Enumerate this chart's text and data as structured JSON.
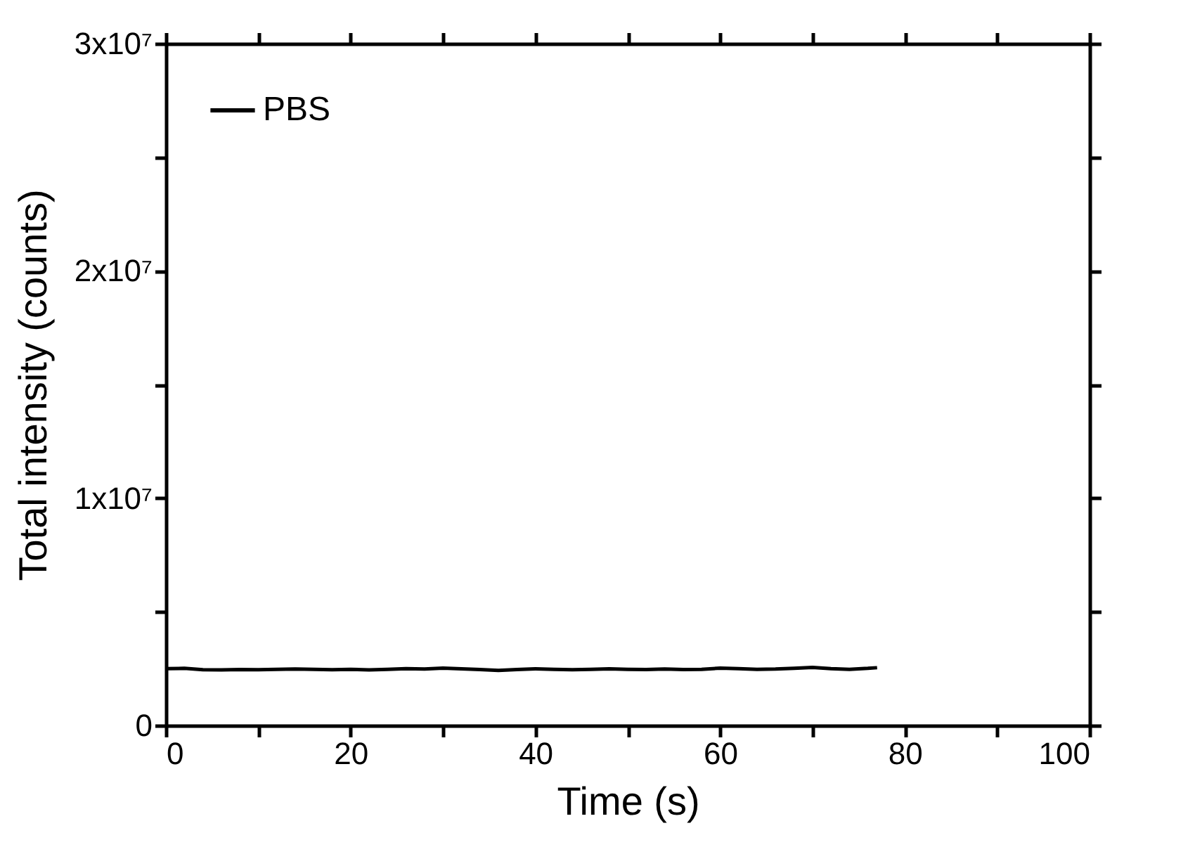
{
  "chart_data": {
    "type": "line",
    "xlabel": "Time (s)",
    "ylabel": "Total intensity (counts)",
    "xlim": [
      0,
      100
    ],
    "ylim": [
      0,
      30000000
    ],
    "xticks": [
      0,
      {
        "value": 10,
        "label": null
      },
      20,
      {
        "value": 30,
        "label": null
      },
      40,
      {
        "value": 50,
        "label": null
      },
      60,
      {
        "value": 70,
        "label": null
      },
      80,
      {
        "value": 90,
        "label": null
      },
      100
    ],
    "yticks": [
      0,
      {
        "value": 5000000,
        "label": null
      },
      {
        "value": 10000000,
        "label": "1x10⁷"
      },
      {
        "value": 15000000,
        "label": null
      },
      {
        "value": 20000000,
        "label": "2x10⁷"
      },
      {
        "value": 25000000,
        "label": null
      },
      {
        "value": 30000000,
        "label": "3x10⁷"
      }
    ],
    "x": [
      0,
      2,
      4,
      6,
      8,
      10,
      12,
      14,
      16,
      18,
      20,
      22,
      24,
      26,
      28,
      30,
      32,
      34,
      36,
      38,
      40,
      42,
      44,
      46,
      48,
      50,
      52,
      54,
      56,
      58,
      60,
      62,
      64,
      66,
      68,
      70,
      72,
      74,
      76,
      77
    ],
    "series": [
      {
        "name": "PBS",
        "color": "#000000",
        "values": [
          2500000,
          2510000,
          2450000,
          2440000,
          2460000,
          2450000,
          2470000,
          2480000,
          2470000,
          2450000,
          2470000,
          2440000,
          2470000,
          2500000,
          2480000,
          2520000,
          2490000,
          2460000,
          2420000,
          2460000,
          2490000,
          2470000,
          2450000,
          2470000,
          2490000,
          2470000,
          2460000,
          2480000,
          2460000,
          2470000,
          2520000,
          2500000,
          2470000,
          2480000,
          2510000,
          2550000,
          2500000,
          2470000,
          2510000,
          2540000
        ]
      }
    ],
    "legend": "top left",
    "line_style": "solid",
    "marker": "none"
  }
}
